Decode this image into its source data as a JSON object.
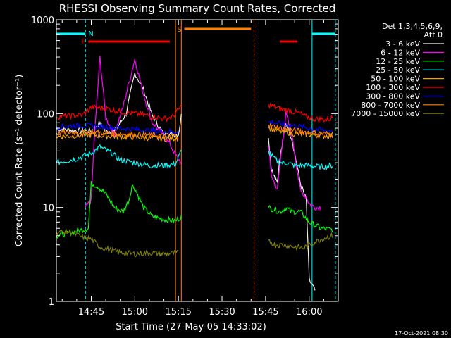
{
  "chart_data": {
    "type": "line",
    "title": "RHESSI Observing Summary Count Rates, Corrected",
    "xlabel": "Start Time (27-May-05 14:33:02)",
    "ylabel": "Corrected Count Rate (s⁻¹ detector⁻¹)",
    "yscale": "log",
    "ylim": [
      1,
      1000
    ],
    "xlim": [
      "14:33",
      "16:10"
    ],
    "x_ticks": [
      "14:45",
      "15:00",
      "15:15",
      "15:30",
      "15:45",
      "16:00"
    ],
    "y_ticks": [
      "1",
      "10",
      "100",
      "1000"
    ],
    "legend_header": [
      "Det 1,3,4,5,6,9,",
      "Att 0"
    ],
    "legend_position": "top-right",
    "footer_date": "17-Oct-2021 08:30",
    "flag_labels": {
      "N": "N",
      "F": "F",
      "S": "S"
    },
    "series": [
      {
        "name": "3 - 6 keV",
        "color": "#f0f0f0",
        "points": [
          [
            "14:33",
            69
          ],
          [
            "14:42",
            65
          ],
          [
            "14:45",
            66
          ],
          [
            "14:48",
            80
          ],
          [
            "14:50",
            65
          ],
          [
            "14:53",
            64
          ],
          [
            "14:57",
            100
          ],
          [
            "15:00",
            270
          ],
          [
            "15:03",
            180
          ],
          [
            "15:06",
            95
          ],
          [
            "15:10",
            60
          ],
          [
            "15:15",
            60
          ],
          [
            "15:16",
            95
          ],
          [
            "15:46",
            55
          ],
          [
            "15:47",
            26
          ],
          [
            "15:49",
            19
          ],
          [
            "15:50",
            34
          ],
          [
            "15:52",
            80
          ],
          [
            "15:54",
            55
          ],
          [
            "15:57",
            18
          ],
          [
            "15:59",
            12
          ],
          [
            "16:00",
            1.7
          ],
          [
            "16:02",
            1.3
          ]
        ]
      },
      {
        "name": "6 - 12 keV",
        "color": "#ff00ff",
        "points": [
          [
            "14:43",
            10
          ],
          [
            "14:45",
            12
          ],
          [
            "14:46",
            50
          ],
          [
            "14:48",
            400
          ],
          [
            "14:50",
            90
          ],
          [
            "14:53",
            60
          ],
          [
            "14:56",
            120
          ],
          [
            "15:00",
            380
          ],
          [
            "15:03",
            160
          ],
          [
            "15:06",
            80
          ],
          [
            "15:10",
            58
          ],
          [
            "15:12",
            48
          ],
          [
            "15:14",
            36
          ],
          [
            "15:16",
            30
          ],
          [
            "15:46",
            45
          ],
          [
            "15:47",
            22
          ],
          [
            "15:49",
            15
          ],
          [
            "15:50",
            30
          ],
          [
            "15:52",
            100
          ],
          [
            "15:54",
            60
          ],
          [
            "15:57",
            15
          ],
          [
            "15:59",
            13
          ],
          [
            "16:00",
            11
          ],
          [
            "16:02",
            10
          ],
          [
            "16:04",
            10
          ]
        ]
      },
      {
        "name": "12 - 25 keV",
        "color": "#00ff00",
        "points": [
          [
            "14:33",
            5
          ],
          [
            "14:44",
            6
          ],
          [
            "14:45",
            18
          ],
          [
            "14:47",
            17
          ],
          [
            "14:50",
            14
          ],
          [
            "14:53",
            10
          ],
          [
            "14:56",
            9
          ],
          [
            "14:58",
            12
          ],
          [
            "14:59",
            17
          ],
          [
            "15:00",
            16
          ],
          [
            "15:03",
            10
          ],
          [
            "15:06",
            8
          ],
          [
            "15:10",
            7.5
          ],
          [
            "15:14",
            7.2
          ],
          [
            "15:16",
            8
          ],
          [
            "15:46",
            10
          ],
          [
            "15:50",
            9
          ],
          [
            "15:52",
            10
          ],
          [
            "15:54",
            9
          ],
          [
            "15:57",
            9
          ],
          [
            "16:00",
            7
          ],
          [
            "16:04",
            6
          ],
          [
            "16:08",
            5.8
          ]
        ]
      },
      {
        "name": "25 - 50 keV",
        "color": "#00ffff",
        "points": [
          [
            "14:33",
            30
          ],
          [
            "14:40",
            33
          ],
          [
            "14:45",
            38
          ],
          [
            "14:48",
            44
          ],
          [
            "14:52",
            38
          ],
          [
            "14:55",
            32
          ],
          [
            "15:00",
            30
          ],
          [
            "15:05",
            28
          ],
          [
            "15:10",
            28
          ],
          [
            "15:14",
            29
          ],
          [
            "15:16",
            40
          ],
          [
            "15:46",
            40
          ],
          [
            "15:48",
            33
          ],
          [
            "15:50",
            30
          ],
          [
            "15:52",
            30
          ],
          [
            "15:55",
            28
          ],
          [
            "16:00",
            28
          ],
          [
            "16:04",
            27
          ],
          [
            "16:08",
            28
          ]
        ]
      },
      {
        "name": "50 - 100 keV",
        "color": "#ffa000",
        "points": [
          [
            "14:33",
            57
          ],
          [
            "14:45",
            59
          ],
          [
            "14:50",
            58
          ],
          [
            "15:00",
            56
          ],
          [
            "15:10",
            54
          ],
          [
            "15:15",
            55
          ],
          [
            "15:46",
            70
          ],
          [
            "15:50",
            65
          ],
          [
            "15:55",
            61
          ],
          [
            "16:00",
            60
          ],
          [
            "16:05",
            58
          ],
          [
            "16:08",
            58
          ]
        ]
      },
      {
        "name": "100 - 300 keV",
        "color": "#ff0000",
        "points": [
          [
            "14:33",
            92
          ],
          [
            "14:38",
            95
          ],
          [
            "14:42",
            97
          ],
          [
            "14:45",
            117
          ],
          [
            "14:50",
            114
          ],
          [
            "14:55",
            105
          ],
          [
            "15:00",
            100
          ],
          [
            "15:05",
            95
          ],
          [
            "15:10",
            88
          ],
          [
            "15:13",
            92
          ],
          [
            "15:16",
            120
          ],
          [
            "15:46",
            125
          ],
          [
            "15:48",
            118
          ],
          [
            "15:50",
            112
          ],
          [
            "15:53",
            108
          ],
          [
            "15:57",
            100
          ],
          [
            "15:59",
            92
          ],
          [
            "16:02",
            88
          ],
          [
            "16:06",
            86
          ],
          [
            "16:08",
            90
          ]
        ]
      },
      {
        "name": "300 - 800 keV",
        "color": "#0000ff",
        "points": [
          [
            "14:33",
            72
          ],
          [
            "14:38",
            74
          ],
          [
            "14:42",
            75
          ],
          [
            "14:45",
            74
          ],
          [
            "14:50",
            72
          ],
          [
            "14:55",
            70
          ],
          [
            "15:00",
            68
          ],
          [
            "15:05",
            66
          ],
          [
            "15:10",
            64
          ],
          [
            "15:15",
            64
          ],
          [
            "15:46",
            82
          ],
          [
            "15:50",
            78
          ],
          [
            "15:55",
            74
          ],
          [
            "16:00",
            70
          ],
          [
            "16:05",
            66
          ],
          [
            "16:08",
            66
          ]
        ]
      },
      {
        "name": "800 - 7000 keV",
        "color": "#ff8000",
        "points": [
          [
            "14:33",
            62
          ],
          [
            "14:40",
            63
          ],
          [
            "14:45",
            64
          ],
          [
            "14:50",
            62
          ],
          [
            "15:00",
            60
          ],
          [
            "15:10",
            58
          ],
          [
            "15:15",
            58
          ],
          [
            "15:46",
            75
          ],
          [
            "15:50",
            70
          ],
          [
            "15:55",
            66
          ],
          [
            "16:00",
            63
          ],
          [
            "16:05",
            61
          ],
          [
            "16:08",
            61
          ]
        ]
      },
      {
        "name": "7000 - 15000 keV",
        "color": "#808000",
        "points": [
          [
            "14:33",
            5.5
          ],
          [
            "14:38",
            5.5
          ],
          [
            "14:42",
            4.8
          ],
          [
            "14:45",
            4.6
          ],
          [
            "14:48",
            3.8
          ],
          [
            "14:55",
            3.3
          ],
          [
            "15:00",
            3.2
          ],
          [
            "15:05",
            3.3
          ],
          [
            "15:10",
            3.2
          ],
          [
            "15:15",
            3.3
          ],
          [
            "15:46",
            4.5
          ],
          [
            "15:48",
            4.0
          ],
          [
            "15:52",
            4.0
          ],
          [
            "15:55",
            3.8
          ],
          [
            "15:58",
            3.7
          ],
          [
            "16:00",
            4.0
          ],
          [
            "16:04",
            4.6
          ],
          [
            "16:08",
            5.0
          ]
        ]
      }
    ],
    "flags": {
      "N": {
        "color": "#00ffff",
        "bars": [
          [
            "14:33",
            "14:43"
          ],
          [
            "16:01",
            "16:09"
          ]
        ]
      },
      "F": {
        "color": "#ff0000",
        "bars": [
          [
            "14:44",
            "15:12"
          ],
          [
            "15:50",
            "15:56"
          ]
        ]
      },
      "S": {
        "color": "#ff8000",
        "bars": [
          [
            "15:17",
            "15:40"
          ]
        ]
      }
    },
    "markers": [
      {
        "time": "14:43",
        "color": "#00ffff",
        "style": "dashed"
      },
      {
        "time": "15:14",
        "color": "#ff8000",
        "style": "solid"
      },
      {
        "time": "15:16",
        "color": "#ff8000",
        "style": "solid"
      },
      {
        "time": "15:41",
        "color": "#ff8000",
        "style": "dashed"
      },
      {
        "time": "16:01",
        "color": "#00ffff",
        "style": "solid"
      },
      {
        "time": "16:09",
        "color": "#00ffff",
        "style": "dashed"
      }
    ]
  }
}
